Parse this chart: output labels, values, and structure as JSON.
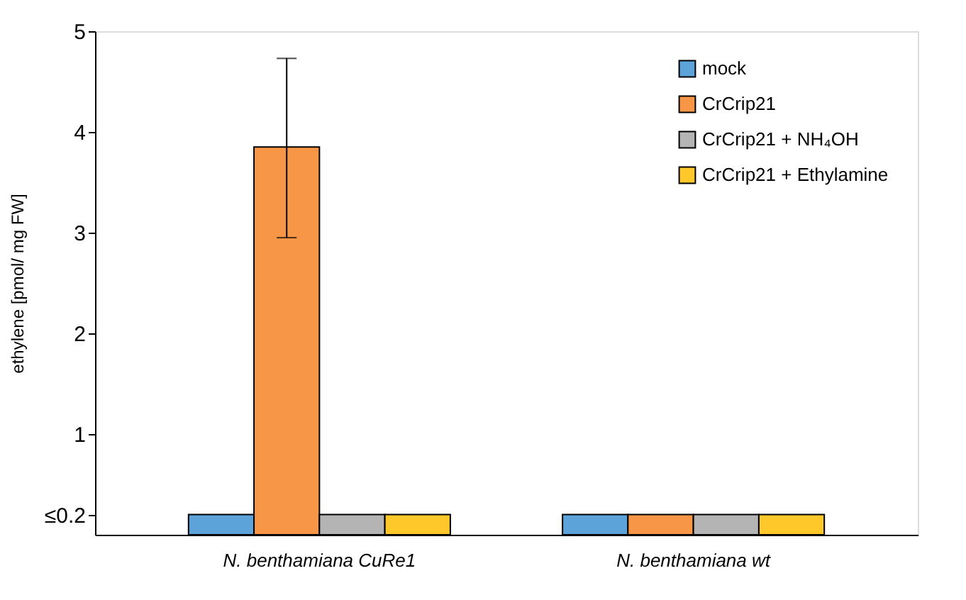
{
  "chart_data": {
    "type": "bar",
    "ylabel": "ethylene [pmol/ mg FW]",
    "categories": [
      "N. benthamiana CuRe1",
      "N. benthamiana wt"
    ],
    "series": [
      {
        "name": "mock",
        "color": "#5ba3d9",
        "values": [
          0.2,
          0.2
        ]
      },
      {
        "name": "CrCrip21",
        "color": "#f79646",
        "values": [
          3.85,
          0.2
        ],
        "errors": [
          [
            2.95,
            4.73
          ],
          null
        ]
      },
      {
        "name": "CrCrip21 + NH₄OH",
        "color": "#b4b4b4",
        "values": [
          0.2,
          0.2
        ]
      },
      {
        "name": "CrCrip21 + Ethylamine",
        "color": "#ffc82a",
        "values": [
          0.2,
          0.2
        ]
      }
    ],
    "ylim": [
      0,
      5
    ],
    "yticks": [
      {
        "value": 0.2,
        "label": "≤0.2"
      },
      1,
      2,
      3,
      4,
      5
    ],
    "grid": false,
    "legend": "top right"
  }
}
